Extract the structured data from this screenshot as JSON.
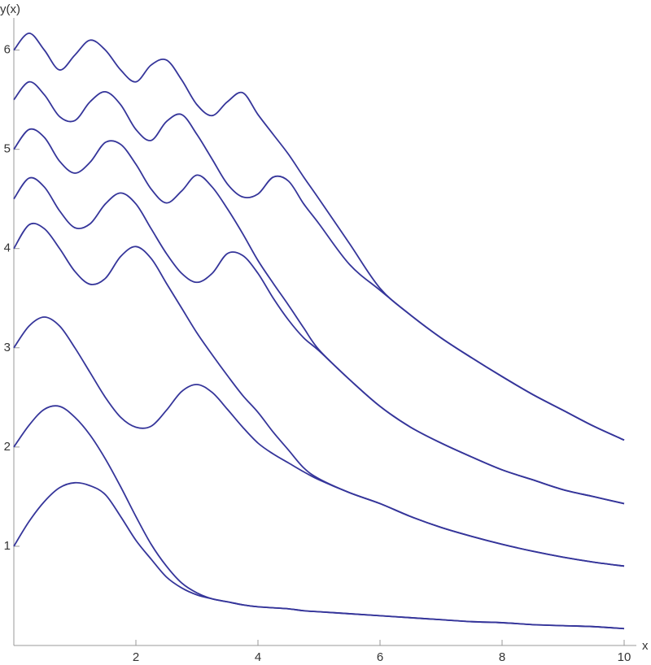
{
  "chart_data": {
    "type": "line",
    "xlabel": "x",
    "ylabel": "y(x)",
    "x": [
      0,
      0.25,
      0.5,
      0.75,
      1,
      1.25,
      1.5,
      1.75,
      2,
      2.25,
      2.5,
      2.75,
      3,
      3.25,
      3.5,
      3.75,
      4,
      4.25,
      4.5,
      4.75,
      5,
      5.5,
      6,
      6.5,
      7,
      7.5,
      8,
      8.5,
      9,
      9.5,
      10
    ],
    "series": [
      {
        "color": "#35359a",
        "values": [
          1.0,
          1.25,
          1.45,
          1.59,
          1.64,
          1.61,
          1.52,
          1.3,
          1.06,
          0.87,
          0.69,
          0.58,
          0.51,
          0.47,
          0.44,
          0.41,
          0.39,
          0.38,
          0.37,
          0.35,
          0.34,
          0.32,
          0.3,
          0.28,
          0.26,
          0.24,
          0.23,
          0.21,
          0.2,
          0.19,
          0.17
        ]
      },
      {
        "color": "#35359a",
        "values": [
          2.0,
          2.22,
          2.38,
          2.41,
          2.3,
          2.12,
          1.88,
          1.6,
          1.3,
          1.02,
          0.8,
          0.63,
          0.53,
          0.47,
          0.44,
          0.41,
          0.39,
          0.38,
          0.37,
          0.35,
          0.34,
          0.32,
          0.3,
          0.28,
          0.26,
          0.24,
          0.23,
          0.21,
          0.2,
          0.19,
          0.17
        ]
      },
      {
        "color": "#35359a",
        "values": [
          3.0,
          3.22,
          3.31,
          3.22,
          3.0,
          2.75,
          2.5,
          2.3,
          2.2,
          2.21,
          2.37,
          2.56,
          2.63,
          2.55,
          2.38,
          2.2,
          2.04,
          1.93,
          1.84,
          1.75,
          1.67,
          1.54,
          1.43,
          1.3,
          1.19,
          1.1,
          1.02,
          0.95,
          0.89,
          0.84,
          0.8
        ]
      },
      {
        "color": "#35359a",
        "values": [
          4.0,
          4.24,
          4.2,
          4.0,
          3.77,
          3.64,
          3.7,
          3.92,
          4.02,
          3.9,
          3.65,
          3.4,
          3.15,
          2.93,
          2.72,
          2.52,
          2.35,
          2.15,
          1.97,
          1.79,
          1.68,
          1.54,
          1.43,
          1.3,
          1.19,
          1.1,
          1.02,
          0.95,
          0.89,
          0.84,
          0.8
        ]
      },
      {
        "color": "#35359a",
        "values": [
          4.5,
          4.71,
          4.62,
          4.38,
          4.21,
          4.25,
          4.45,
          4.56,
          4.45,
          4.2,
          3.95,
          3.75,
          3.66,
          3.75,
          3.95,
          3.93,
          3.75,
          3.5,
          3.28,
          3.1,
          2.97,
          2.68,
          2.41,
          2.2,
          2.04,
          1.9,
          1.77,
          1.67,
          1.57,
          1.5,
          1.43
        ]
      },
      {
        "color": "#35359a",
        "values": [
          5.0,
          5.2,
          5.12,
          4.88,
          4.76,
          4.87,
          5.07,
          5.05,
          4.85,
          4.6,
          4.46,
          4.58,
          4.74,
          4.62,
          4.4,
          4.15,
          3.88,
          3.65,
          3.43,
          3.2,
          2.98,
          2.68,
          2.41,
          2.2,
          2.04,
          1.9,
          1.77,
          1.67,
          1.57,
          1.5,
          1.43
        ]
      },
      {
        "color": "#35359a",
        "values": [
          5.5,
          5.68,
          5.55,
          5.33,
          5.29,
          5.48,
          5.58,
          5.45,
          5.2,
          5.09,
          5.28,
          5.35,
          5.15,
          4.9,
          4.65,
          4.52,
          4.55,
          4.72,
          4.68,
          4.45,
          4.25,
          3.84,
          3.58,
          3.33,
          3.1,
          2.9,
          2.71,
          2.53,
          2.37,
          2.21,
          2.07
        ]
      },
      {
        "color": "#35359a",
        "values": [
          6.0,
          6.17,
          6.0,
          5.8,
          5.95,
          6.1,
          6.0,
          5.8,
          5.68,
          5.85,
          5.9,
          5.7,
          5.45,
          5.34,
          5.48,
          5.57,
          5.35,
          5.15,
          4.95,
          4.72,
          4.5,
          4.05,
          3.6,
          3.33,
          3.1,
          2.9,
          2.71,
          2.53,
          2.37,
          2.21,
          2.07
        ]
      }
    ],
    "xlim": [
      0,
      10
    ],
    "ylim": [
      0,
      6.3
    ],
    "xticks": [
      2,
      4,
      6,
      8,
      10
    ],
    "yticks": [
      1,
      2,
      3,
      4,
      5,
      6
    ],
    "grid": false
  }
}
